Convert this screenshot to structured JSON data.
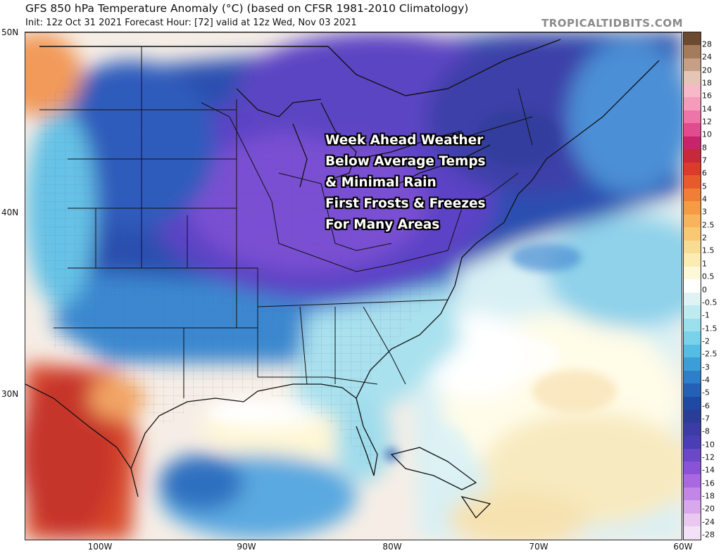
{
  "title": "GFS 850 hPa Temperature Anomaly (°C) (based on CFSR 1981-2010 Climatology)",
  "subtitle": "Init: 12z Oct 31 2021   Forecast Hour: [72]   valid at 12z Wed, Nov 03 2021",
  "brand": "TROPICALTIDBITS.COM",
  "overlay": {
    "line1": "Week Ahead Weather",
    "line2": "Below Average Temps",
    "line3": "& Minimal Rain",
    "line4": "First Frosts & Freezes",
    "line5": "For Many Areas"
  },
  "axes": {
    "lat": {
      "n50": "50N",
      "n40": "40N",
      "n30": "30N"
    },
    "lon": {
      "w100": "100W",
      "w90": "90W",
      "w80": "80W",
      "w70": "70W",
      "w60": "60W"
    }
  },
  "colorbar": {
    "labels": [
      "28",
      "24",
      "20",
      "18",
      "16",
      "14",
      "12",
      "10",
      "8",
      "7",
      "6",
      "5",
      "4",
      "3",
      "2.5",
      "2",
      "1.5",
      "1",
      "0.5",
      "0",
      "-0.5",
      "-1",
      "-1.5",
      "-2",
      "-2.5",
      "-3",
      "-4",
      "-5",
      "-6",
      "-7",
      "-8",
      "-10",
      "-12",
      "-14",
      "-16",
      "-18",
      "-20",
      "-24",
      "-28"
    ],
    "colors": [
      "#6b4a2f",
      "#a57b5e",
      "#c79f86",
      "#e5c5b3",
      "#f7b9c8",
      "#f59bbc",
      "#ef74a8",
      "#e24b8d",
      "#c9246b",
      "#c7283a",
      "#dc3b2c",
      "#e85a2c",
      "#f27d35",
      "#f59c43",
      "#f8b45a",
      "#f8c873",
      "#f9dc93",
      "#fbecb3",
      "#fcf8d8",
      "#ffffff",
      "#dff3f5",
      "#bdebf0",
      "#9be0ec",
      "#78d2ea",
      "#55bce4",
      "#3c9ed6",
      "#2d7fc9",
      "#2461b6",
      "#1f4aa3",
      "#2a3e98",
      "#3b3ca6",
      "#4b3db6",
      "#6a48c8",
      "#8a53d7",
      "#aa68e0",
      "#c486e6",
      "#d9a8ec",
      "#e9c8f2",
      "#f3e1f7"
    ]
  }
}
